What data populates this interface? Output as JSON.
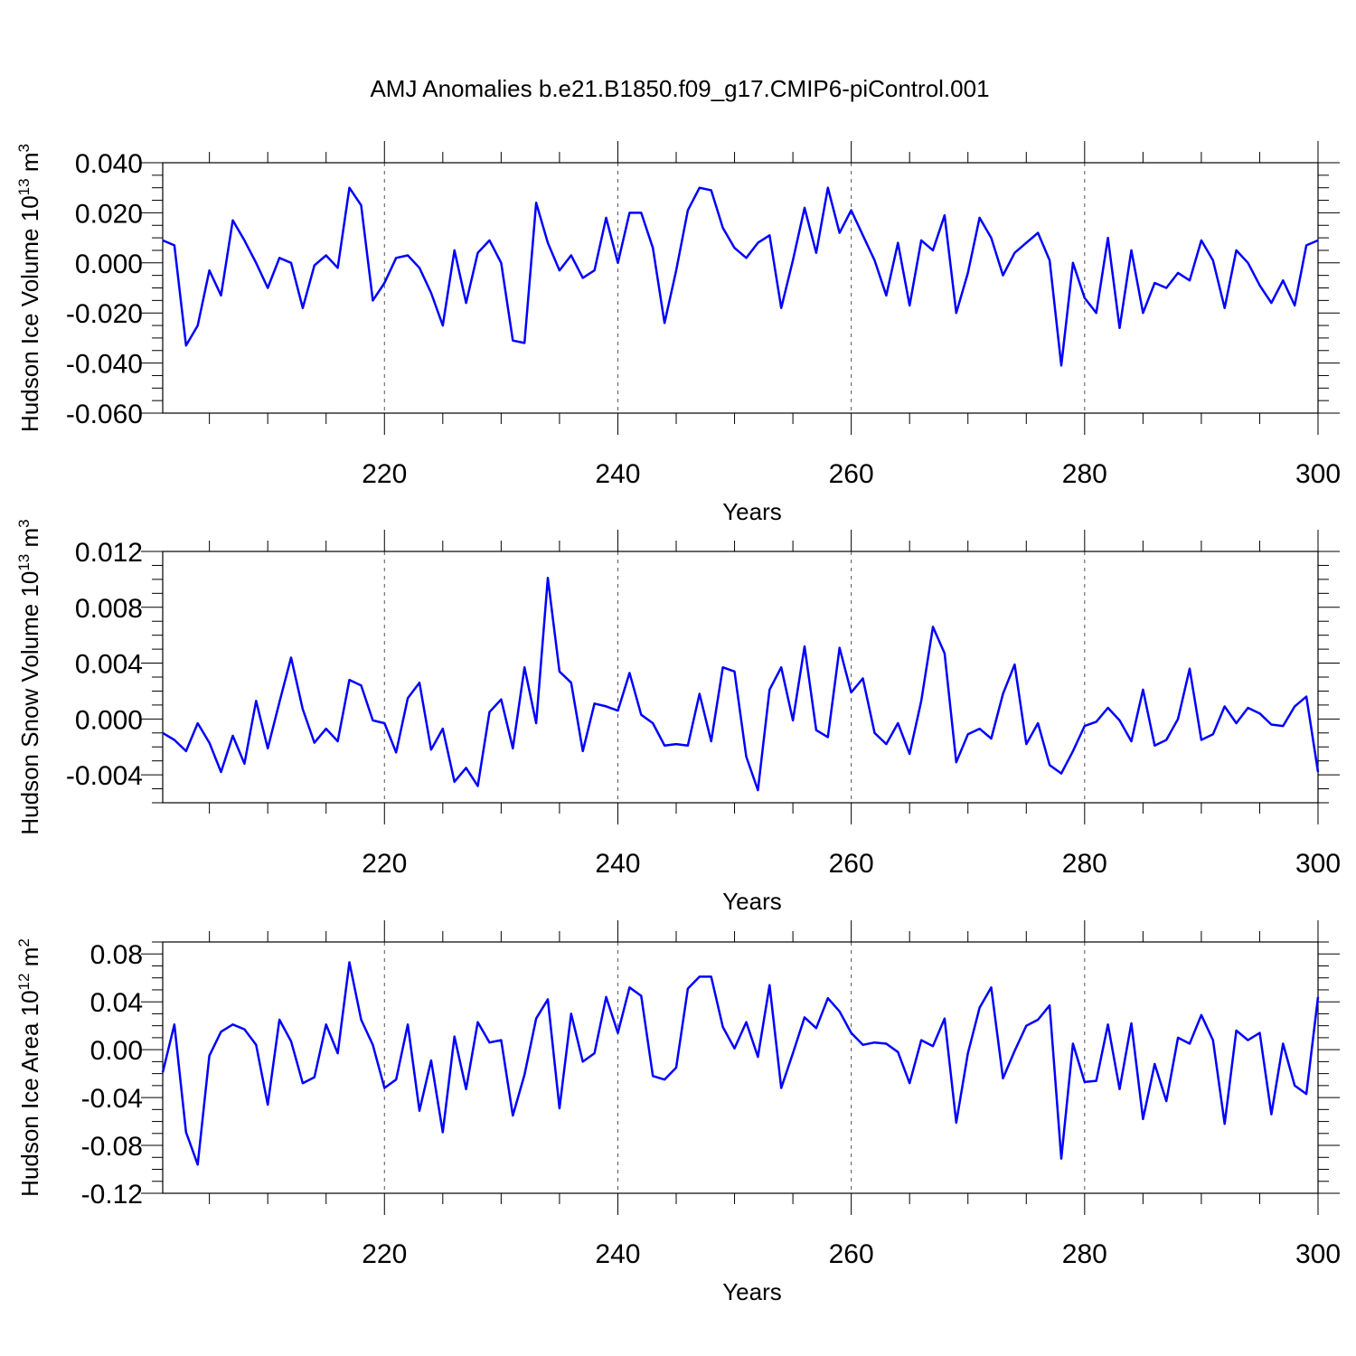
{
  "figure": {
    "title": "AMJ Anomalies b.e21.B1850.f09_g17.CMIP6-piControl.001"
  },
  "chart_data": [
    {
      "type": "line",
      "title": "",
      "xlabel": "Years",
      "ylabel_main": "Hudson Ice Volume 10",
      "ylabel_exp": "13",
      "ylabel_unit": " m",
      "ylabel_unit_exp": "3",
      "xlim": [
        201,
        300
      ],
      "ylim": [
        -0.06,
        0.04
      ],
      "grid": "x dashed",
      "xticks": [
        220,
        240,
        260,
        280,
        300
      ],
      "yticks": [
        -0.06,
        -0.04,
        -0.02,
        0.0,
        0.02,
        0.04
      ],
      "yticklabels": [
        "-0.060",
        "-0.040",
        "-0.020",
        "0.000",
        "0.020",
        "0.040"
      ],
      "ytick_step_minor": 0.005,
      "x_start": 201,
      "series": [
        {
          "name": "Hudson Ice Volume",
          "color": "#0000ff",
          "values": [
            0.009,
            0.007,
            -0.033,
            -0.025,
            -0.003,
            -0.013,
            0.017,
            0.009,
            0.0,
            -0.01,
            0.002,
            0.0,
            -0.018,
            -0.001,
            0.003,
            -0.002,
            0.03,
            0.023,
            -0.015,
            -0.008,
            0.002,
            0.003,
            -0.002,
            -0.012,
            -0.025,
            0.005,
            -0.016,
            0.004,
            0.009,
            0.0,
            -0.031,
            -0.032,
            0.024,
            0.008,
            -0.003,
            0.003,
            -0.006,
            -0.003,
            0.018,
            0.0,
            0.02,
            0.02,
            0.006,
            -0.024,
            -0.003,
            0.021,
            0.03,
            0.029,
            0.014,
            0.006,
            0.002,
            0.008,
            0.011,
            -0.018,
            0.001,
            0.022,
            0.004,
            0.03,
            0.012,
            0.021,
            0.011,
            0.001,
            -0.013,
            0.008,
            -0.017,
            0.009,
            0.005,
            0.019,
            -0.02,
            -0.004,
            0.018,
            0.01,
            -0.005,
            0.004,
            0.008,
            0.012,
            0.001,
            -0.041,
            0.0,
            -0.014,
            -0.02,
            0.01,
            -0.026,
            0.005,
            -0.02,
            -0.008,
            -0.01,
            -0.004,
            -0.007,
            0.009,
            0.001,
            -0.018,
            0.005,
            0.0,
            -0.009,
            -0.016,
            -0.007,
            -0.017,
            0.007,
            0.009
          ]
        }
      ]
    },
    {
      "type": "line",
      "title": "",
      "xlabel": "Years",
      "ylabel_main": "Hudson Snow Volume 10",
      "ylabel_exp": "13",
      "ylabel_unit": " m",
      "ylabel_unit_exp": "3",
      "xlim": [
        201,
        300
      ],
      "ylim": [
        -0.006,
        0.012
      ],
      "grid": "x dashed",
      "xticks": [
        220,
        240,
        260,
        280,
        300
      ],
      "yticks": [
        -0.004,
        0.0,
        0.004,
        0.008,
        0.012
      ],
      "yticklabels": [
        "-0.004",
        "0.000",
        "0.004",
        "0.008",
        "0.012"
      ],
      "ytick_step_minor": 0.001,
      "x_start": 201,
      "series": [
        {
          "name": "Hudson Snow Volume",
          "color": "#0000ff",
          "values": [
            -0.001,
            -0.0015,
            -0.0023,
            -0.0003,
            -0.0017,
            -0.0038,
            -0.0012,
            -0.0032,
            0.0013,
            -0.0021,
            0.0012,
            0.0044,
            0.0007,
            -0.0017,
            -0.0007,
            -0.0016,
            0.0028,
            0.0024,
            -0.0001,
            -0.0003,
            -0.0024,
            0.0015,
            0.0026,
            -0.0022,
            -0.0007,
            -0.0045,
            -0.0035,
            -0.0048,
            0.0005,
            0.0014,
            -0.0021,
            0.0037,
            -0.0003,
            0.0101,
            0.0034,
            0.0026,
            -0.0023,
            0.0011,
            0.0009,
            0.0006,
            0.0033,
            0.0003,
            -0.0003,
            -0.0019,
            -0.0018,
            -0.0019,
            0.0018,
            -0.0016,
            0.0037,
            0.0034,
            -0.0027,
            -0.0051,
            0.0021,
            0.0037,
            -0.0001,
            0.0052,
            -0.0008,
            -0.0013,
            0.0051,
            0.0019,
            0.0029,
            -0.001,
            -0.0018,
            -0.0003,
            -0.0025,
            0.0013,
            0.0066,
            0.0047,
            -0.0031,
            -0.0011,
            -0.0007,
            -0.0014,
            0.0018,
            0.0039,
            -0.0018,
            -0.0003,
            -0.0033,
            -0.0039,
            -0.0023,
            -0.0005,
            -0.0002,
            0.0008,
            -0.0001,
            -0.0016,
            0.0021,
            -0.0019,
            -0.0015,
            0.0,
            0.0036,
            -0.0015,
            -0.0011,
            0.0009,
            -0.0003,
            0.0008,
            0.0004,
            -0.0004,
            -0.0005,
            0.0009,
            0.0016,
            -0.0038
          ]
        }
      ]
    },
    {
      "type": "line",
      "title": "",
      "xlabel": "Years",
      "ylabel_main": "Hudson Ice Area 10",
      "ylabel_exp": "12",
      "ylabel_unit": " m",
      "ylabel_unit_exp": "2",
      "xlim": [
        201,
        300
      ],
      "ylim": [
        -0.12,
        0.09
      ],
      "grid": "x dashed",
      "xticks": [
        220,
        240,
        260,
        280,
        300
      ],
      "yticks": [
        -0.12,
        -0.08,
        -0.04,
        0.0,
        0.04,
        0.08
      ],
      "yticklabels": [
        "-0.12",
        "-0.08",
        "-0.04",
        "0.00",
        "0.04",
        "0.08"
      ],
      "ytick_step_minor": 0.01,
      "x_start": 201,
      "series": [
        {
          "name": "Hudson Ice Area",
          "color": "#0000ff",
          "values": [
            -0.019,
            0.021,
            -0.069,
            -0.096,
            -0.005,
            0.015,
            0.021,
            0.017,
            0.004,
            -0.046,
            0.025,
            0.007,
            -0.028,
            -0.023,
            0.021,
            -0.003,
            0.073,
            0.025,
            0.004,
            -0.032,
            -0.025,
            0.021,
            -0.051,
            -0.009,
            -0.069,
            0.011,
            -0.033,
            0.023,
            0.006,
            0.008,
            -0.055,
            -0.021,
            0.026,
            0.042,
            -0.049,
            0.03,
            -0.01,
            -0.003,
            0.044,
            0.014,
            0.052,
            0.045,
            -0.022,
            -0.025,
            -0.015,
            0.051,
            0.061,
            0.061,
            0.019,
            0.001,
            0.023,
            -0.006,
            0.054,
            -0.032,
            -0.003,
            0.027,
            0.018,
            0.043,
            0.032,
            0.014,
            0.004,
            0.006,
            0.005,
            -0.002,
            -0.028,
            0.008,
            0.003,
            0.026,
            -0.061,
            -0.003,
            0.035,
            0.052,
            -0.024,
            -0.001,
            0.02,
            0.025,
            0.037,
            -0.091,
            0.005,
            -0.027,
            -0.026,
            0.021,
            -0.033,
            0.022,
            -0.058,
            -0.012,
            -0.043,
            0.01,
            0.005,
            0.029,
            0.008,
            -0.062,
            0.016,
            0.008,
            0.014,
            -0.054,
            0.005,
            -0.03,
            -0.037,
            0.044
          ]
        }
      ]
    }
  ]
}
